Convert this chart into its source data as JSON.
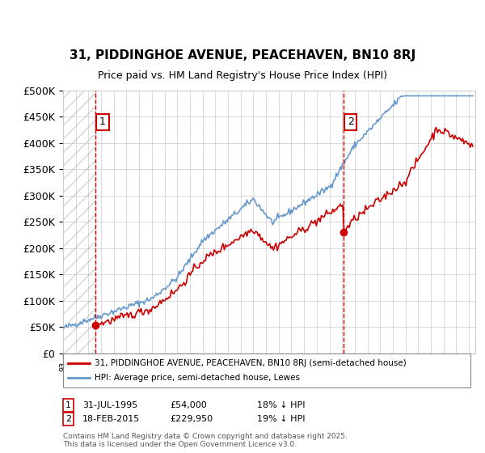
{
  "title": "31, PIDDINGHOE AVENUE, PEACEHAVEN, BN10 8RJ",
  "subtitle": "Price paid vs. HM Land Registry's House Price Index (HPI)",
  "ylabel_ticks": [
    0,
    50000,
    100000,
    150000,
    200000,
    250000,
    300000,
    350000,
    400000,
    450000,
    500000
  ],
  "ylabel_labels": [
    "£0",
    "£50K",
    "£100K",
    "£150K",
    "£200K",
    "£250K",
    "£300K",
    "£350K",
    "£400K",
    "£450K",
    "£500K"
  ],
  "ylim": [
    0,
    500000
  ],
  "xlim_start": 1993.0,
  "xlim_end": 2025.5,
  "event1_x": 1995.57,
  "event1_y": 54000,
  "event1_label": "1",
  "event1_date": "31-JUL-1995",
  "event1_price": "£54,000",
  "event1_hpi": "18% ↓ HPI",
  "event2_x": 2015.12,
  "event2_y": 229950,
  "event2_label": "2",
  "event2_date": "18-FEB-2015",
  "event2_price": "£229,950",
  "event2_hpi": "19% ↓ HPI",
  "line1_color": "#cc0000",
  "line2_color": "#6699cc",
  "hatch_color": "#cccccc",
  "grid_color": "#cccccc",
  "vline_color": "#cc0000",
  "legend_line1": "31, PIDDINGHOE AVENUE, PEACEHAVEN, BN10 8RJ (semi-detached house)",
  "legend_line2": "HPI: Average price, semi-detached house, Lewes",
  "footer": "Contains HM Land Registry data © Crown copyright and database right 2025.\nThis data is licensed under the Open Government Licence v3.0.",
  "background_color": "#ffffff",
  "plot_bg_color": "#ffffff"
}
